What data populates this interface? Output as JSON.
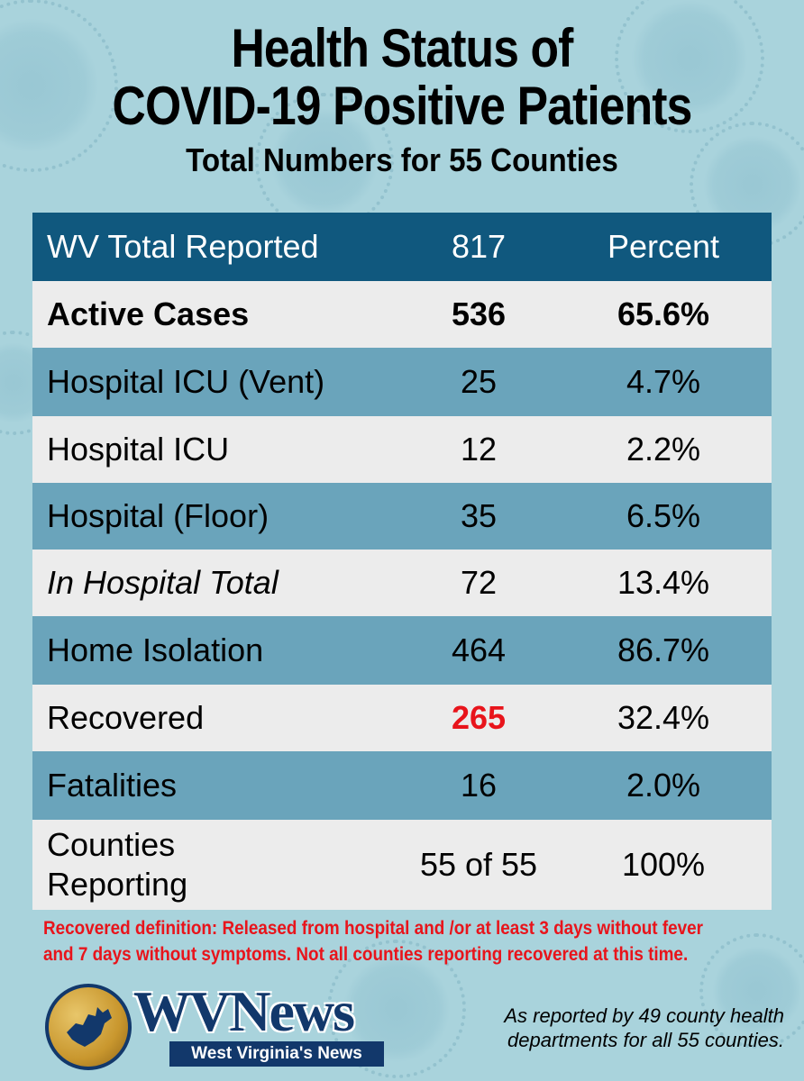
{
  "title": {
    "line1": "Health Status of",
    "line2": "COVID-19 Positive Patients",
    "subtitle": "Total Numbers for 55 Counties"
  },
  "table": {
    "header": {
      "label": "WV Total Reported",
      "value": "817",
      "percent": "Percent"
    },
    "rows": [
      {
        "label": "Active Cases",
        "value": "536",
        "percent": "65.6%"
      },
      {
        "label": "Hospital ICU (Vent)",
        "value": "25",
        "percent": "4.7%"
      },
      {
        "label": "Hospital ICU",
        "value": "12",
        "percent": "2.2%"
      },
      {
        "label": "Hospital (Floor)",
        "value": "35",
        "percent": "6.5%"
      },
      {
        "label": "In Hospital Total",
        "value": "72",
        "percent": "13.4%"
      },
      {
        "label": "Home Isolation",
        "value": "464",
        "percent": "86.7%"
      },
      {
        "label": "Recovered",
        "value": "265",
        "percent": "32.4%"
      },
      {
        "label": "Fatalities",
        "value": "16",
        "percent": "2.0%"
      },
      {
        "label_line1": "Counties",
        "label_line2": "Reporting",
        "value": "55 of 55",
        "percent": "100%"
      }
    ]
  },
  "note": {
    "line1": "Recovered definition:  Released from hospital and /or at least 3 days without fever",
    "line2": "and 7 days without symptoms.  Not all counties reporting recovered at this time."
  },
  "logo": {
    "wordmark": "WVNews",
    "tagline": "West Virginia's News",
    "icon": "west-virginia-map-icon"
  },
  "source": {
    "line1": "As reported by 49 county health",
    "line2": "departments for all 55 counties."
  },
  "colors": {
    "background": "#a9d3dc",
    "header": "#10587e",
    "row_light": "#ececec",
    "row_dark": "#6aa4bb",
    "accent_red": "#e8141b",
    "brand_navy": "#12386b"
  }
}
